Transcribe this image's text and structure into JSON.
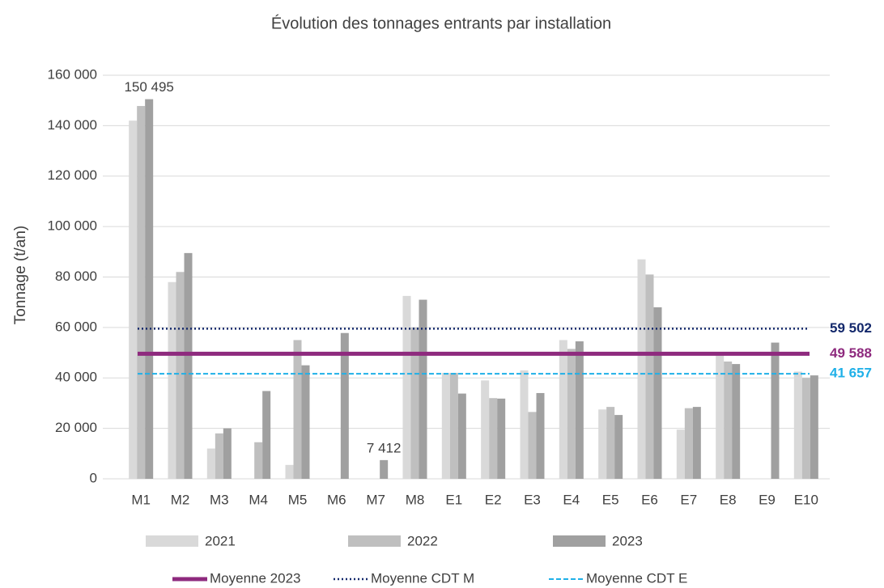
{
  "chart_data": {
    "type": "bar",
    "title": "Évolution des tonnages entrants par installation",
    "y_label": "Tonnage (t/an)",
    "categories": [
      "M1",
      "M2",
      "M3",
      "M4",
      "M5",
      "M6",
      "M7",
      "M8",
      "E1",
      "E2",
      "E3",
      "E4",
      "E5",
      "E6",
      "E7",
      "E8",
      "E9",
      "E10"
    ],
    "series": [
      {
        "name": "2021",
        "color": "#d9d9d9",
        "values": [
          142000,
          78000,
          12000,
          null,
          5500,
          null,
          null,
          72500,
          42000,
          39000,
          43000,
          55000,
          27500,
          87000,
          19500,
          50000,
          null,
          42500
        ]
      },
      {
        "name": "2022",
        "color": "#bfbfbf",
        "values": [
          147800,
          82000,
          18000,
          14500,
          55000,
          null,
          null,
          60000,
          42000,
          32000,
          26500,
          51500,
          28500,
          81000,
          28000,
          46500,
          null,
          40000
        ]
      },
      {
        "name": "2023",
        "color": "#a0a0a0",
        "values": [
          150495,
          89500,
          20000,
          34800,
          45000,
          57800,
          7412,
          71000,
          33800,
          31800,
          34000,
          54500,
          25300,
          68000,
          28500,
          45500,
          54000,
          41000
        ],
        "value_labels": [
          "150 495",
          null,
          null,
          null,
          null,
          null,
          "7 412",
          null,
          null,
          null,
          null,
          null,
          null,
          null,
          null,
          null,
          null,
          null
        ]
      }
    ],
    "reference_lines": [
      {
        "name": "Moyenne 2023",
        "value": 49588,
        "value_label": "49 588",
        "color": "#8e2a7e",
        "style": "solid"
      },
      {
        "name": "Moyenne CDT M",
        "value": 59502,
        "value_label": "59 502",
        "color": "#13286b",
        "style": "dotted"
      },
      {
        "name": "Moyenne CDT E",
        "value": 41657,
        "value_label": "41 657",
        "color": "#1fb0e8",
        "style": "dashed"
      }
    ],
    "ylim": [
      0,
      160000
    ],
    "yticks": [
      0,
      {
        "value": 20000,
        "label": "20 000"
      },
      {
        "value": 40000,
        "label": "40 000"
      },
      {
        "value": 60000,
        "label": "60 000"
      },
      {
        "value": 80000,
        "label": "80 000"
      },
      {
        "value": 100000,
        "label": "100 000"
      },
      {
        "value": 120000,
        "label": "120 000"
      },
      {
        "value": 140000,
        "label": "140 000"
      },
      {
        "value": 160000,
        "label": "160 000"
      }
    ],
    "grid": true
  }
}
